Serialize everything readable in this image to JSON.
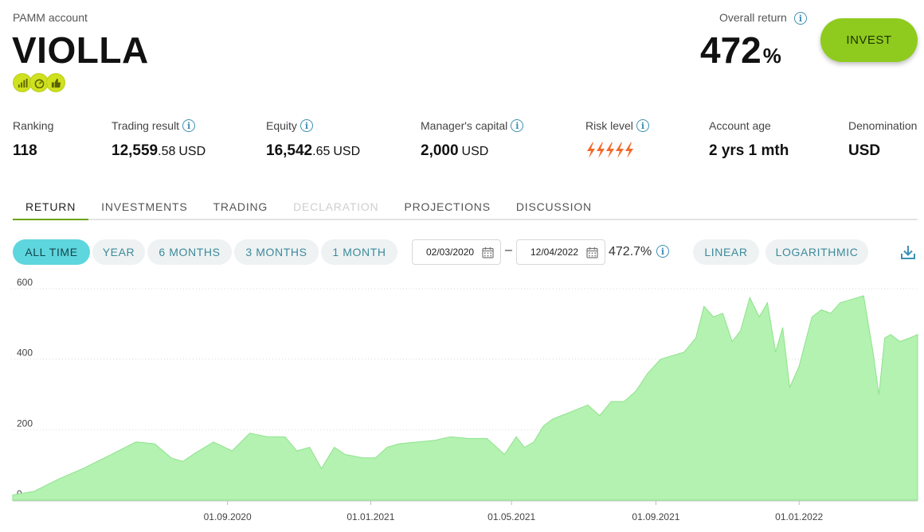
{
  "header": {
    "subtitle": "PAMM account",
    "account_name": "VIOLLA",
    "badges": [
      "chart-badge-icon",
      "speedometer-badge-icon",
      "thumbs-up-badge-icon"
    ],
    "overall_return_label": "Overall return",
    "overall_return_value": "472",
    "overall_return_unit": "%",
    "invest_label": "INVEST"
  },
  "stats": {
    "ranking": {
      "label": "Ranking",
      "value": "118"
    },
    "trading_result": {
      "label": "Trading result",
      "int": "12,559",
      "dec": ".58",
      "currency": "USD"
    },
    "equity": {
      "label": "Equity",
      "int": "16,542",
      "dec": ".65",
      "currency": "USD"
    },
    "managers_capital": {
      "label": "Manager's capital",
      "int": "2,000",
      "currency": "USD"
    },
    "risk_level": {
      "label": "Risk level",
      "level": 5,
      "max": 5
    },
    "account_age": {
      "label": "Account age",
      "value": "2 yrs 1 mth"
    },
    "denomination": {
      "label": "Denomination",
      "value": "USD"
    }
  },
  "tabs": [
    {
      "label": "RETURN",
      "state": "active"
    },
    {
      "label": "INVESTMENTS",
      "state": "normal"
    },
    {
      "label": "TRADING",
      "state": "normal"
    },
    {
      "label": "DECLARATION",
      "state": "disabled"
    },
    {
      "label": "PROJECTIONS",
      "state": "normal"
    },
    {
      "label": "DISCUSSION",
      "state": "normal"
    }
  ],
  "periods": [
    "ALL TIME",
    "YEAR",
    "6 MONTHS",
    "3 MONTHS",
    "1 MONTH"
  ],
  "date_from": "02/03/2020",
  "date_to": "12/04/2022",
  "range_return": "472.7%",
  "scales": [
    "LINEAR",
    "LOGARITHMIC"
  ],
  "colors": {
    "accent_green": "#8fcb1e",
    "active_pill": "#5ed6de",
    "area_fill": "#b3f2b1",
    "area_stroke": "#8fe28c",
    "risk_orange": "#f26a2b",
    "info_blue": "#3d8fb3"
  },
  "chart_data": {
    "type": "area",
    "x_ticks": [
      "01.09.2020",
      "01.01.2021",
      "01.05.2021",
      "01.09.2021",
      "01.01.2022"
    ],
    "x_tick_dates": [
      "2020-09-01",
      "2021-01-01",
      "2021-05-01",
      "2021-09-01",
      "2022-01-01"
    ],
    "x_range": [
      "2020-03-02",
      "2022-04-12"
    ],
    "y_ticks": [
      0,
      200,
      400,
      600
    ],
    "ylim": [
      0,
      600
    ],
    "grid": true,
    "series": [
      {
        "x": [
          "2020-03-02",
          "2020-03-20",
          "2020-04-10",
          "2020-05-01",
          "2020-05-25",
          "2020-06-15",
          "2020-07-01",
          "2020-07-15",
          "2020-07-25",
          "2020-08-05",
          "2020-08-20",
          "2020-09-05",
          "2020-09-20",
          "2020-10-05",
          "2020-10-20",
          "2020-10-30",
          "2020-11-10",
          "2020-11-20",
          "2020-12-01",
          "2020-12-10",
          "2020-12-25",
          "2021-01-05",
          "2021-01-15",
          "2021-01-25",
          "2021-02-10",
          "2021-02-25",
          "2021-03-10",
          "2021-03-25",
          "2021-04-10",
          "2021-04-25",
          "2021-05-05",
          "2021-05-12",
          "2021-05-20",
          "2021-05-28",
          "2021-06-05",
          "2021-06-20",
          "2021-07-05",
          "2021-07-15",
          "2021-07-25",
          "2021-08-05",
          "2021-08-15",
          "2021-08-25",
          "2021-09-05",
          "2021-09-15",
          "2021-09-25",
          "2021-10-05",
          "2021-10-12",
          "2021-10-20",
          "2021-10-28",
          "2021-11-05",
          "2021-11-12",
          "2021-11-20",
          "2021-11-28",
          "2021-12-05",
          "2021-12-12",
          "2021-12-18",
          "2021-12-24",
          "2022-01-01",
          "2022-01-08",
          "2022-01-12",
          "2022-01-20",
          "2022-01-28",
          "2022-02-05",
          "2022-02-15",
          "2022-02-25",
          "2022-03-05",
          "2022-03-10",
          "2022-03-15",
          "2022-03-20",
          "2022-03-28",
          "2022-04-05",
          "2022-04-12"
        ],
        "values": [
          15,
          25,
          60,
          90,
          130,
          165,
          160,
          120,
          110,
          135,
          165,
          140,
          190,
          180,
          180,
          140,
          150,
          90,
          150,
          130,
          120,
          120,
          150,
          160,
          165,
          170,
          180,
          175,
          175,
          130,
          180,
          150,
          165,
          210,
          230,
          250,
          270,
          240,
          280,
          280,
          310,
          360,
          400,
          410,
          420,
          460,
          550,
          520,
          530,
          450,
          480,
          575,
          520,
          560,
          420,
          490,
          320,
          380,
          470,
          520,
          540,
          530,
          560,
          570,
          580,
          420,
          300,
          460,
          470,
          450,
          460,
          470
        ]
      }
    ]
  }
}
